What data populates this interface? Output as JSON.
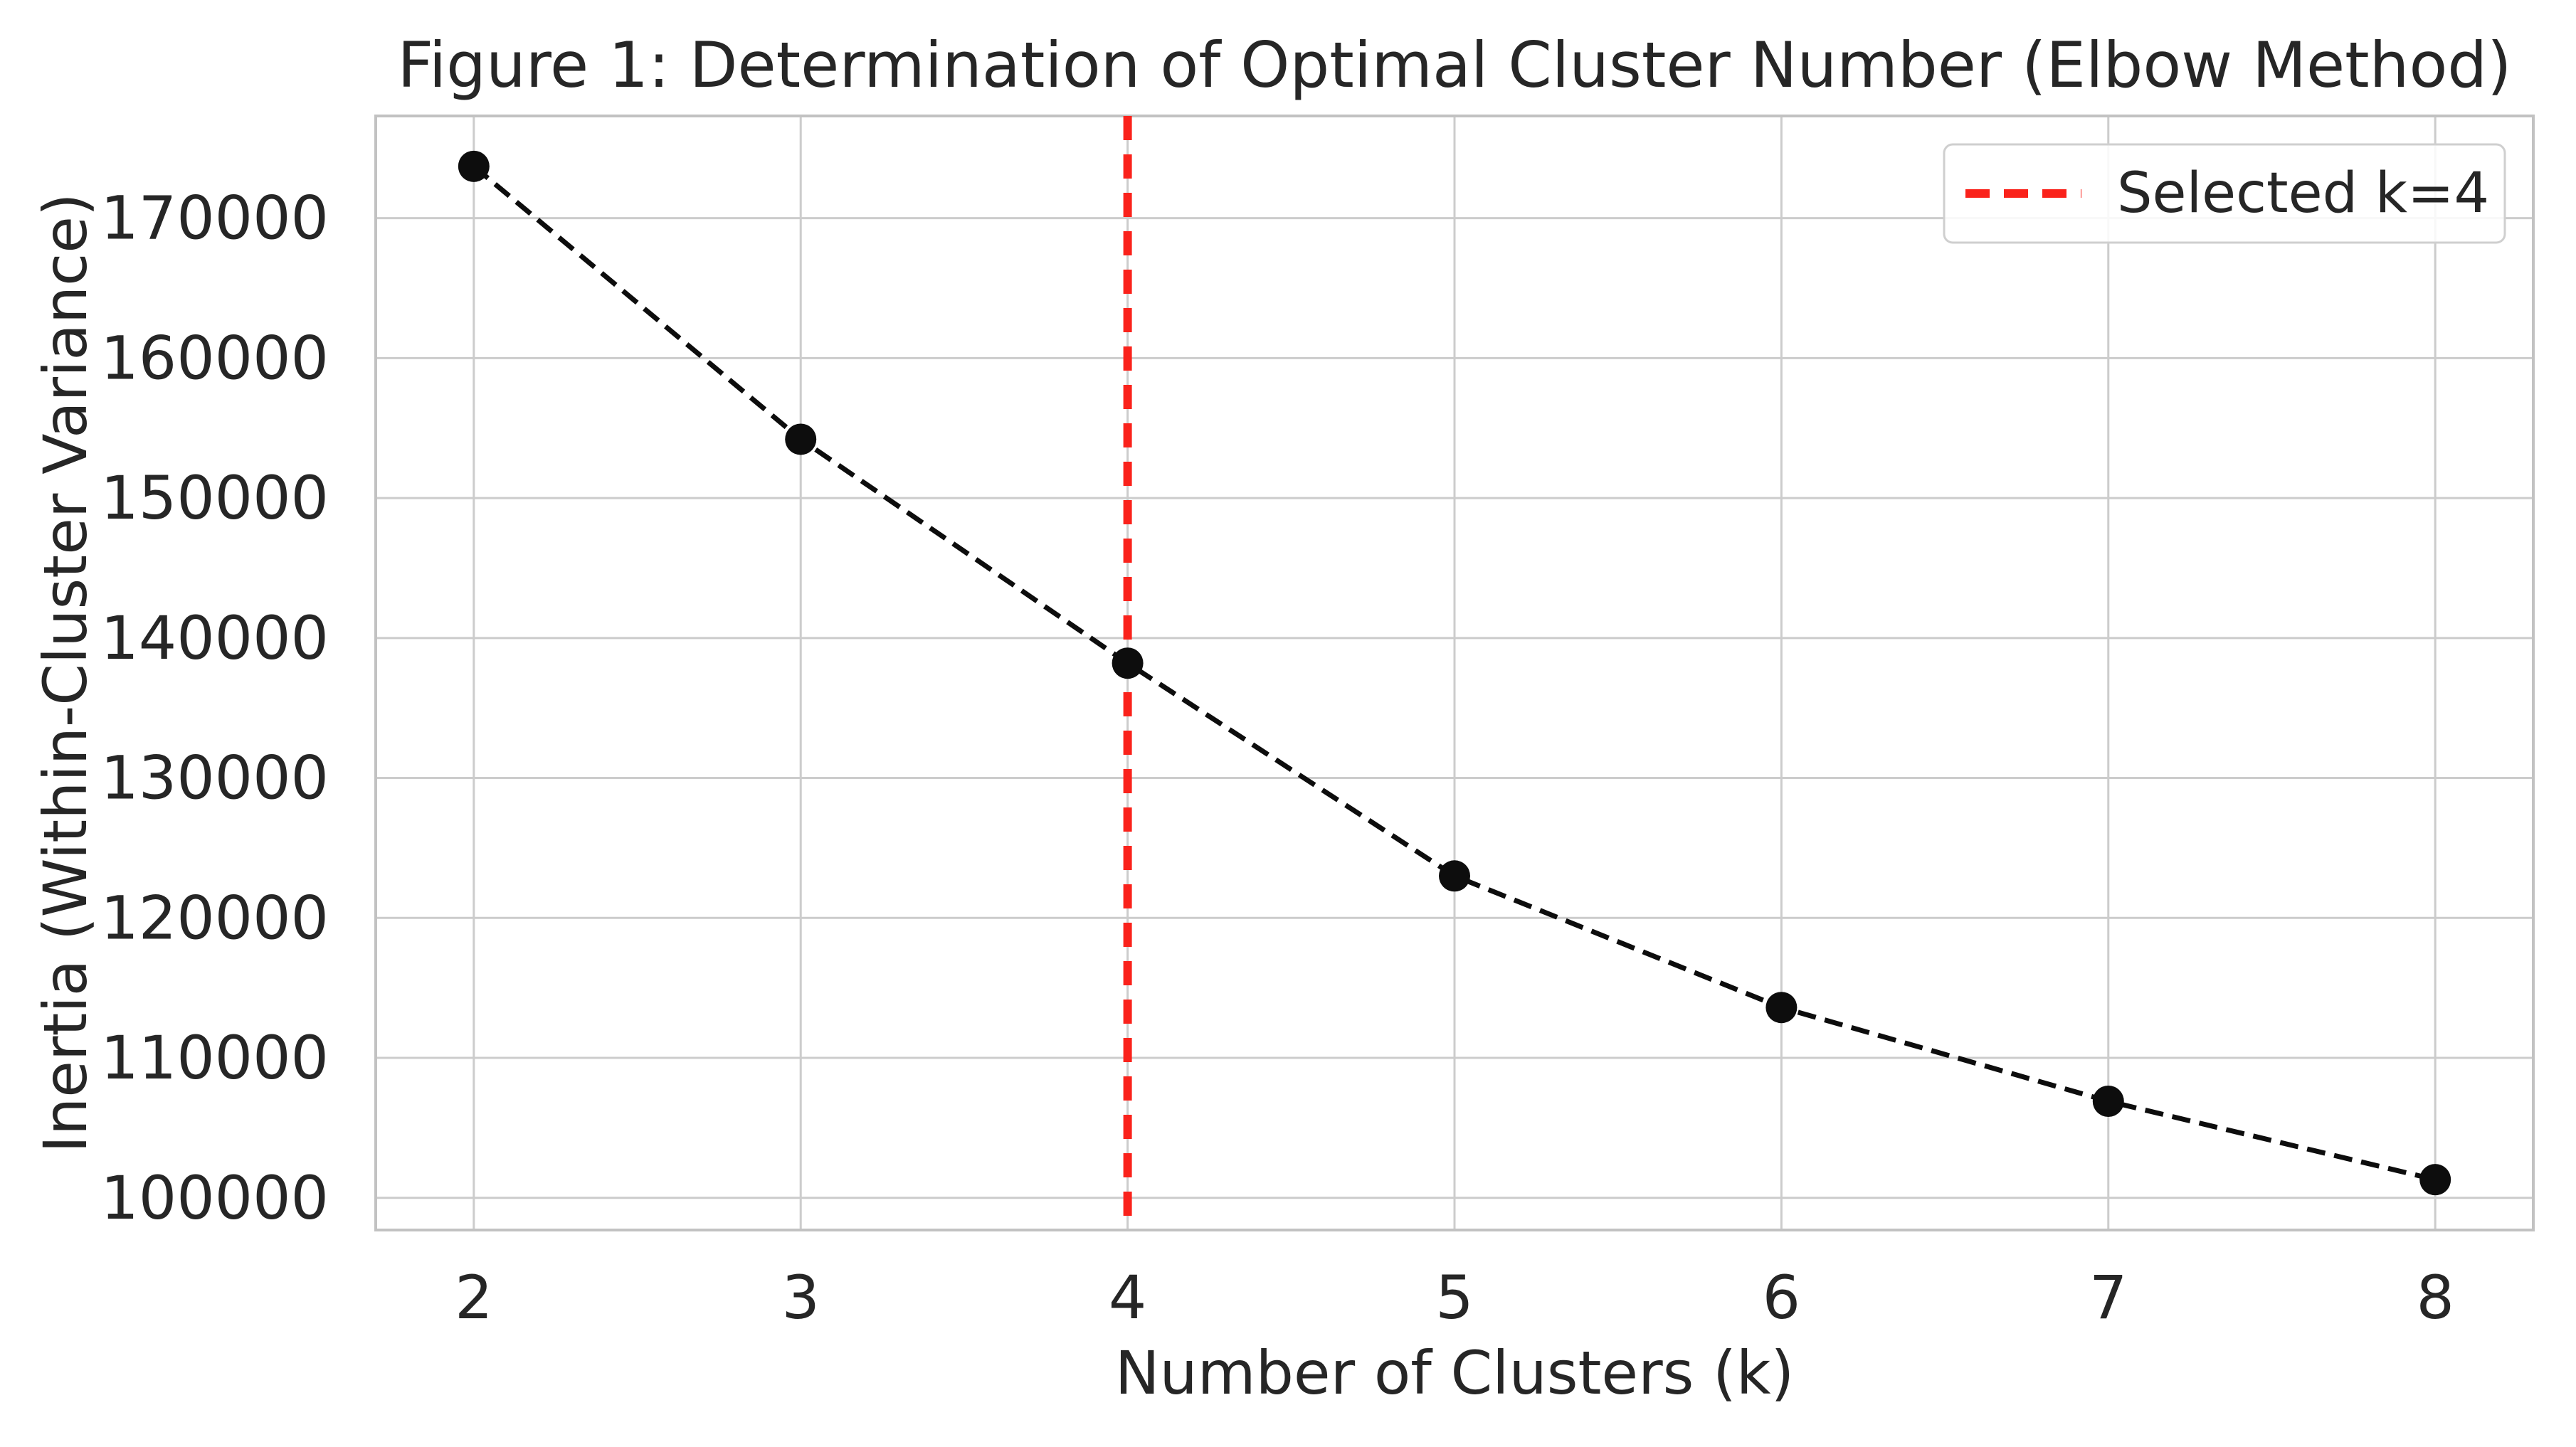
{
  "figure": {
    "title": "Figure 1: Determination of Optimal Cluster Number (Elbow Method)",
    "xlabel": "Number of Clusters (k)",
    "ylabel": "Inertia (Within-Cluster Variance)"
  },
  "legend": {
    "label": "Selected k=4",
    "position": "upper right"
  },
  "colors": {
    "series_line": "#0d0d0d",
    "marker": "#0d0d0d",
    "selected_vline": "#fa221b",
    "grid": "#cccccc",
    "spine": "#c2c2c2",
    "text": "#262626",
    "background": "#ffffff",
    "legend_fill": "rgba(255,255,255,0.85)",
    "legend_border": "#cfcfcf"
  },
  "chart_data": {
    "type": "line",
    "title": "Figure 1: Determination of Optimal Cluster Number (Elbow Method)",
    "xlabel": "Number of Clusters (k)",
    "ylabel": "Inertia (Within-Cluster Variance)",
    "x": [
      2,
      3,
      4,
      5,
      6,
      7,
      8
    ],
    "series": [
      {
        "name": "Inertia",
        "values": [
          173700,
          154200,
          138200,
          123000,
          113600,
          106900,
          101300
        ],
        "line_style": "dashed",
        "marker": "circle",
        "color": "black"
      }
    ],
    "annotations": [
      {
        "type": "vline",
        "x": 4,
        "label": "Selected k=4",
        "color": "red",
        "style": "dashed"
      }
    ],
    "xticks": [
      2,
      3,
      4,
      5,
      6,
      7,
      8
    ],
    "yticks": [
      100000,
      110000,
      120000,
      130000,
      140000,
      150000,
      160000,
      170000
    ],
    "xlim": [
      1.7,
      8.3
    ],
    "ylim": [
      97700,
      177300
    ],
    "grid": true,
    "legend_position": "upper right",
    "selected_k": 4
  }
}
